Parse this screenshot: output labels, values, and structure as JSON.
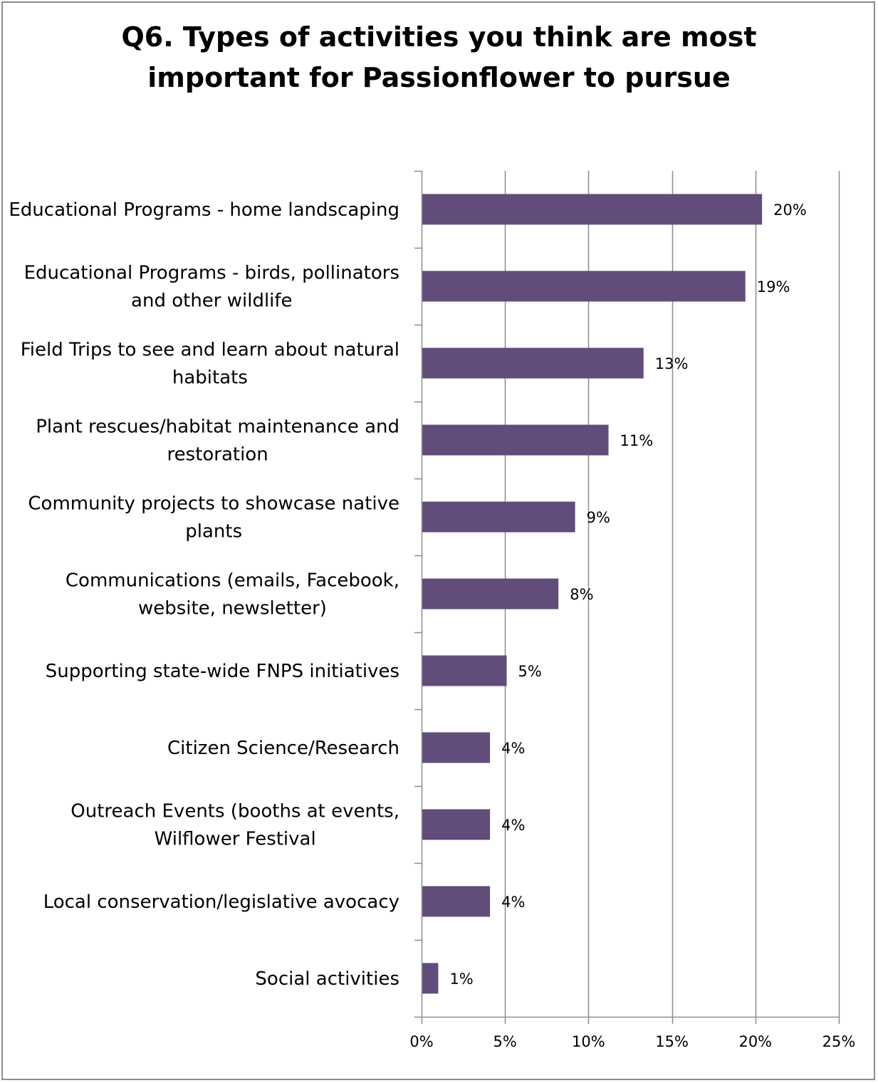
{
  "chart_data": {
    "type": "bar",
    "orientation": "horizontal",
    "title_lines": [
      "Q6.  Types of activities you think are most",
      "important for Passionflower to pursue"
    ],
    "categories": [
      [
        "Educational Programs - home landscaping"
      ],
      [
        "Educational Programs - birds, pollinators",
        "and other wildlife"
      ],
      [
        "Field Trips to see and learn about natural",
        "habitats"
      ],
      [
        "Plant rescues/habitat maintenance and",
        "restoration"
      ],
      [
        "Community projects to showcase native",
        "plants"
      ],
      [
        "Communications (emails, Facebook,",
        "website, newsletter)"
      ],
      [
        "Supporting state-wide FNPS initiatives"
      ],
      [
        "Citizen Science/Research"
      ],
      [
        "Outreach Events (booths at events,",
        "Wilflower Festival"
      ],
      [
        "Local conservation/legislative avocacy"
      ],
      [
        "Social activities"
      ]
    ],
    "values": [
      20.4,
      19.4,
      13.3,
      11.2,
      9.2,
      8.2,
      5.1,
      4.1,
      4.1,
      4.1,
      1.0
    ],
    "value_labels": [
      "20%",
      "19%",
      "13%",
      "11%",
      "9%",
      "8%",
      "5%",
      "4%",
      "4%",
      "4%",
      "1%"
    ],
    "xlim": [
      0,
      25
    ],
    "xticks": [
      0,
      5,
      10,
      15,
      20,
      25
    ],
    "xtick_labels": [
      "0%",
      "5%",
      "10%",
      "15%",
      "20%",
      "25%"
    ],
    "grid": "vertical",
    "legend": "none",
    "bar_color": "#614c7a",
    "grid_color": "#8c8c8c"
  }
}
